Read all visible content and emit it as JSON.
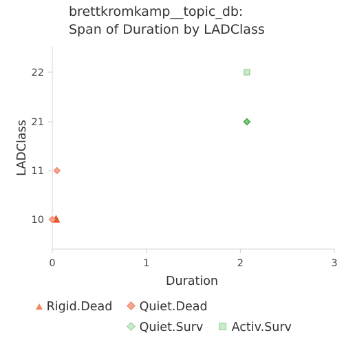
{
  "chart_data": {
    "type": "scatter",
    "title_lines": [
      "brettkromkamp__topic_db:",
      "Span of Duration by LADClass"
    ],
    "xlabel": "Duration",
    "ylabel": "LADClass",
    "x_ticks": [
      0,
      1,
      2,
      3
    ],
    "y_categories": [
      "10",
      "11",
      "21",
      "22"
    ],
    "xlim": [
      0,
      3
    ],
    "grid": false,
    "legend_position": "bottom",
    "series": [
      {
        "name": "Rigid.Dead",
        "marker": "triangle",
        "color": "#e8552a",
        "fill": "#f0845e",
        "points": [
          {
            "x": 0.04,
            "y": "10"
          }
        ]
      },
      {
        "name": "Quiet.Dead",
        "marker": "diamond",
        "color": "#ee8466",
        "fill": "#f4a58c",
        "points": [
          {
            "x": 0.0,
            "y": "10"
          },
          {
            "x": 0.05,
            "y": "11"
          }
        ]
      },
      {
        "name": "Quiet.Surv",
        "marker": "diamond",
        "color": "#2e9a2e",
        "fill": "#7fc97f",
        "points": [
          {
            "x": 2.07,
            "y": "21"
          }
        ]
      },
      {
        "name": "Activ.Surv",
        "marker": "square",
        "color": "#8fce8f",
        "fill": "#c9ebc9",
        "points": [
          {
            "x": 2.07,
            "y": "22"
          }
        ]
      }
    ]
  }
}
